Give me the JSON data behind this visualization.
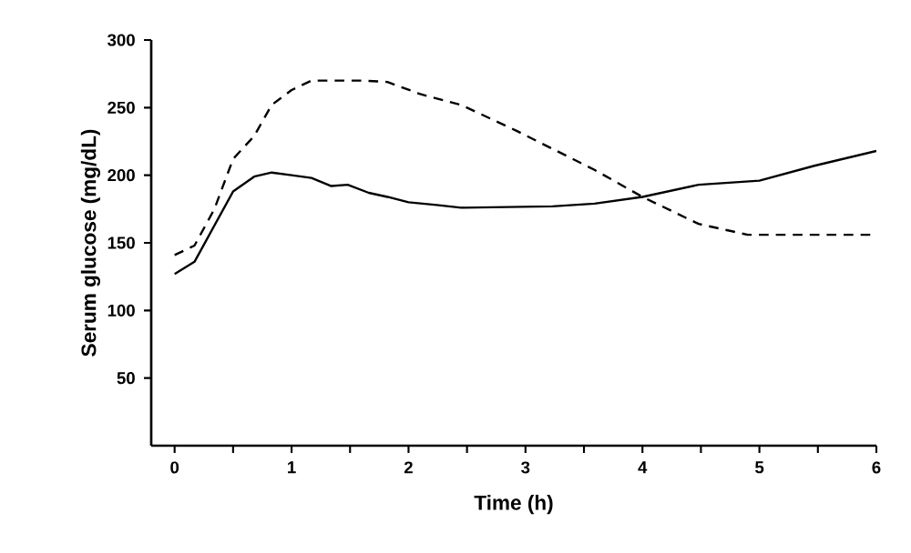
{
  "chart_data": {
    "type": "line",
    "xlabel": "Time (h)",
    "ylabel": "Serum glucose (mg/dL)",
    "xlim": [
      -0.2,
      6
    ],
    "ylim": [
      0,
      300
    ],
    "xticks": [
      0,
      {
        "value": 0.5,
        "label": null
      },
      1,
      {
        "value": 1.5,
        "label": null
      },
      2,
      {
        "value": 2.5,
        "label": null
      },
      3,
      {
        "value": 3.5,
        "label": null
      },
      4,
      {
        "value": 4.5,
        "label": null
      },
      5,
      {
        "value": 5.5,
        "label": null
      },
      6
    ],
    "yticks": [
      50,
      100,
      150,
      200,
      250,
      300
    ],
    "marker": "none",
    "series": [
      {
        "color": "#000000",
        "line_style": "solid",
        "x": [
          0,
          0.17,
          0.5,
          0.68,
          0.83,
          1.0,
          1.17,
          1.34,
          1.48,
          1.66,
          1.82,
          2.0,
          2.24,
          2.45,
          3.23,
          3.59,
          4.0,
          4.48,
          5.0,
          5.47,
          6.0
        ],
        "values": [
          127,
          136,
          188,
          199,
          202,
          200,
          198,
          192,
          193,
          187,
          184,
          180,
          178,
          176,
          177,
          179,
          184,
          193,
          196,
          207,
          218
        ]
      },
      {
        "color": "#000000",
        "line_style": "dashed",
        "x": [
          0,
          0.17,
          0.34,
          0.5,
          0.68,
          0.83,
          1.0,
          1.17,
          1.6,
          1.82,
          2.1,
          2.45,
          2.92,
          3.59,
          4.0,
          4.48,
          4.9,
          6.0
        ],
        "values": [
          141,
          148,
          175,
          212,
          229,
          252,
          263,
          270,
          270,
          269,
          260,
          252,
          233,
          204,
          184,
          164,
          156,
          156
        ]
      }
    ]
  }
}
